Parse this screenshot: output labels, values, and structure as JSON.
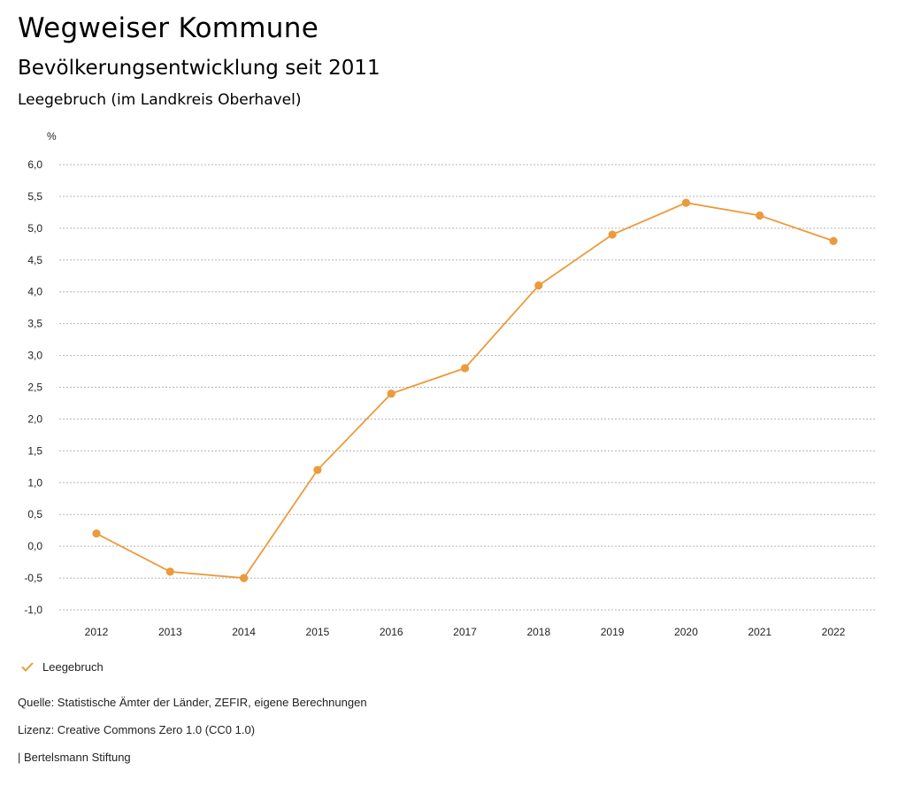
{
  "header": {
    "title": "Wegweiser Kommune",
    "subtitle": "Bevölkerungsentwicklung seit 2011",
    "region": "Leegebruch (im Landkreis Oberhavel)"
  },
  "chart_data": {
    "type": "line",
    "unit_label": "%",
    "categories": [
      "2012",
      "2013",
      "2014",
      "2015",
      "2016",
      "2017",
      "2018",
      "2019",
      "2020",
      "2021",
      "2022"
    ],
    "series": [
      {
        "name": "Leegebruch",
        "color": "#ec9a3a",
        "values": [
          0.2,
          -0.4,
          -0.5,
          1.2,
          2.4,
          2.8,
          4.1,
          4.9,
          5.4,
          5.2,
          4.8
        ]
      }
    ],
    "ylim": [
      -1.0,
      6.0
    ],
    "yticks": [
      "6,0",
      "5,5",
      "5,0",
      "4,5",
      "4,0",
      "3,5",
      "3,0",
      "2,5",
      "2,0",
      "1,5",
      "1,0",
      "0,5",
      "0,0",
      "-0,5",
      "-1,0"
    ],
    "grid": true,
    "legend_position": "bottom-left"
  },
  "footer": {
    "source": "Quelle: Statistische Ämter der Länder, ZEFIR, eigene Berechnungen",
    "license": "Lizenz: Creative Commons Zero 1.0 (CC0 1.0)",
    "publisher": "| Bertelsmann Stiftung"
  }
}
